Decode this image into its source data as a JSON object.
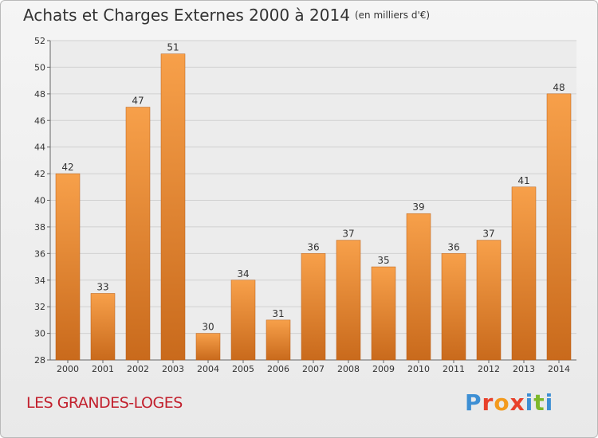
{
  "header": {
    "title": "Achats et Charges Externes 2000 à 2014",
    "unit": "(en milliers d'€)"
  },
  "footer": {
    "commune": "LES GRANDES-LOGES",
    "brand_letters": [
      "P",
      "r",
      "o",
      "x",
      "i",
      "t",
      "i"
    ],
    "brand_colors": [
      "#3d8fd4",
      "#e8402a",
      "#f39a1d",
      "#e8402a",
      "#3d8fd4",
      "#7db82a",
      "#3d8fd4"
    ]
  },
  "chart_data": {
    "type": "bar",
    "categories": [
      "2000",
      "2001",
      "2002",
      "2003",
      "2004",
      "2005",
      "2006",
      "2007",
      "2008",
      "2009",
      "2010",
      "2011",
      "2012",
      "2013",
      "2014"
    ],
    "values": [
      42,
      33,
      47,
      51,
      30,
      34,
      31,
      36,
      37,
      35,
      39,
      36,
      37,
      41,
      48
    ],
    "title": "Achats et Charges Externes 2000 à 2014",
    "ylim": [
      28,
      52
    ],
    "yticks": [
      28,
      30,
      32,
      34,
      36,
      38,
      40,
      42,
      44,
      46,
      48,
      50,
      52
    ],
    "grid": true,
    "data_labels": true,
    "colors": {
      "bar_light": "#f7a04a",
      "bar_dark": "#c96a1c",
      "grid": "#d0d0d0",
      "axis_text": "#333333"
    }
  }
}
